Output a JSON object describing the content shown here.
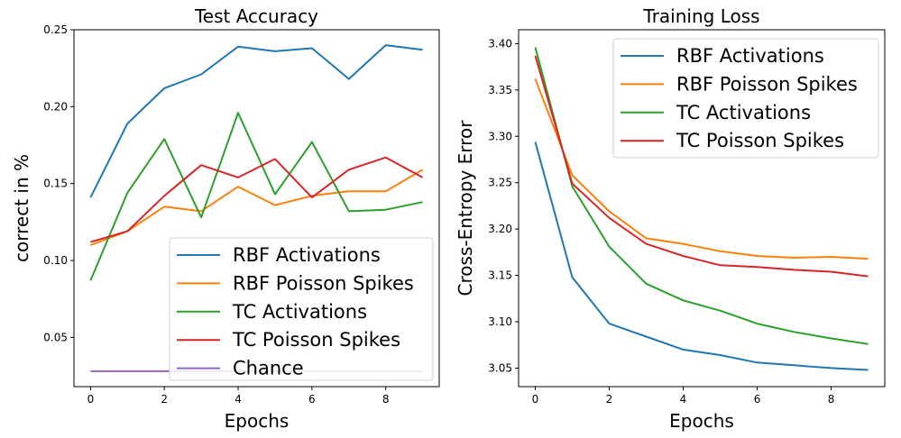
{
  "chart_data": [
    {
      "type": "line",
      "title": "Test Accuracy",
      "xlabel": "Epochs",
      "ylabel": "correct in %",
      "x": [
        0,
        1,
        2,
        3,
        4,
        5,
        6,
        7,
        8,
        9
      ],
      "xlim": [
        -0.45,
        9.45
      ],
      "ylim": [
        0.018,
        0.25
      ],
      "xticks": [
        0,
        2,
        4,
        6,
        8
      ],
      "yticks": [
        0.05,
        0.1,
        0.15,
        0.2,
        0.25
      ],
      "ytick_labels": [
        "0.05",
        "0.10",
        "0.15",
        "0.20",
        "0.25"
      ],
      "grid": false,
      "legend_position": "lower-right",
      "series": [
        {
          "name": "RBF Activations",
          "color": "#1f77b4",
          "values": [
            0.141,
            0.189,
            0.212,
            0.221,
            0.239,
            0.236,
            0.238,
            0.218,
            0.24,
            0.237
          ]
        },
        {
          "name": "RBF Poisson Spikes",
          "color": "#ff7f0e",
          "values": [
            0.11,
            0.119,
            0.135,
            0.132,
            0.148,
            0.136,
            0.142,
            0.145,
            0.145,
            0.159
          ]
        },
        {
          "name": "TC Activations",
          "color": "#2ca02c",
          "values": [
            0.087,
            0.144,
            0.179,
            0.128,
            0.196,
            0.143,
            0.177,
            0.132,
            0.133,
            0.138
          ]
        },
        {
          "name": "TC Poisson Spikes",
          "color": "#d62728",
          "values": [
            0.112,
            0.119,
            0.142,
            0.162,
            0.154,
            0.166,
            0.141,
            0.159,
            0.167,
            0.154
          ]
        },
        {
          "name": "Chance",
          "color": "#9467bd",
          "values": [
            0.028,
            0.028,
            0.028,
            0.028,
            0.028,
            0.028,
            0.028,
            0.028,
            0.028,
            0.028
          ]
        }
      ]
    },
    {
      "type": "line",
      "title": "Training Loss",
      "xlabel": "Epochs",
      "ylabel": "Cross-Entropy Error",
      "x": [
        0,
        1,
        2,
        3,
        4,
        5,
        6,
        7,
        8,
        9
      ],
      "xlim": [
        -0.45,
        9.45
      ],
      "ylim": [
        3.03,
        3.415
      ],
      "xticks": [
        0,
        2,
        4,
        6,
        8
      ],
      "yticks": [
        3.05,
        3.1,
        3.15,
        3.2,
        3.25,
        3.3,
        3.35,
        3.4
      ],
      "ytick_labels": [
        "3.05",
        "3.10",
        "3.15",
        "3.20",
        "3.25",
        "3.30",
        "3.35",
        "3.40"
      ],
      "grid": false,
      "legend_position": "top-right",
      "series": [
        {
          "name": "RBF Activations",
          "color": "#1f77b4",
          "values": [
            3.294,
            3.148,
            3.098,
            3.084,
            3.07,
            3.064,
            3.056,
            3.053,
            3.05,
            3.048
          ]
        },
        {
          "name": "RBF Poisson Spikes",
          "color": "#ff7f0e",
          "values": [
            3.362,
            3.258,
            3.219,
            3.19,
            3.184,
            3.176,
            3.171,
            3.169,
            3.17,
            3.168
          ]
        },
        {
          "name": "TC Activations",
          "color": "#2ca02c",
          "values": [
            3.396,
            3.246,
            3.181,
            3.141,
            3.123,
            3.112,
            3.098,
            3.089,
            3.082,
            3.076
          ]
        },
        {
          "name": "TC Poisson Spikes",
          "color": "#d62728",
          "values": [
            3.387,
            3.249,
            3.212,
            3.184,
            3.171,
            3.161,
            3.159,
            3.156,
            3.154,
            3.149
          ]
        }
      ]
    }
  ]
}
